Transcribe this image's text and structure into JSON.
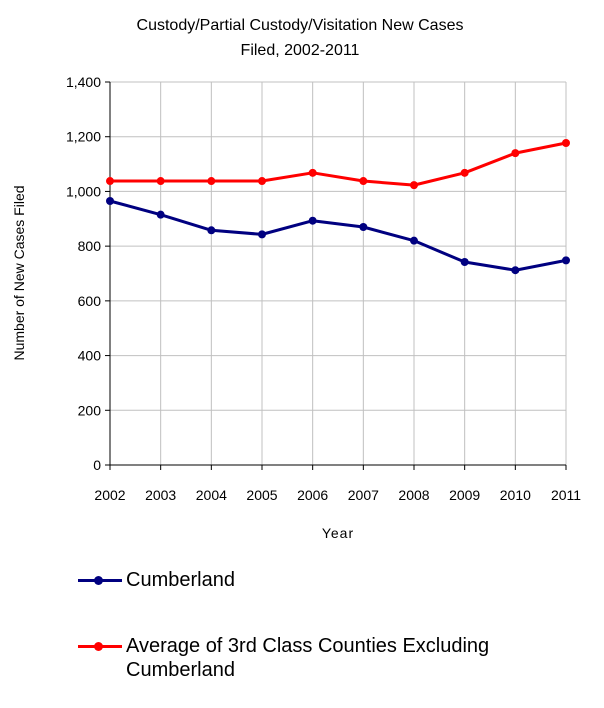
{
  "chart_data": {
    "type": "line",
    "title_lines": [
      "Custody/Partial Custody/Visitation New  Cases",
      "Filed, 2002-2011"
    ],
    "xlabel": "Year",
    "ylabel": "Number of New Cases Filed",
    "categories": [
      "2002",
      "2003",
      "2004",
      "2005",
      "2006",
      "2007",
      "2008",
      "2009",
      "2010",
      "2011"
    ],
    "ylim": [
      0,
      1400
    ],
    "yticks": [
      0,
      200,
      400,
      600,
      800,
      1000,
      1200,
      1400
    ],
    "ytick_labels": [
      "0",
      "200",
      "400",
      "600",
      "800",
      "1,000",
      "1,200",
      "1,400"
    ],
    "grid": true,
    "legend_position": "bottom",
    "series": [
      {
        "name": "Cumberland",
        "color": "#000080",
        "values": [
          965,
          915,
          858,
          843,
          893,
          870,
          820,
          742,
          712,
          748
        ]
      },
      {
        "name": "Average of 3rd Class Counties Excluding Cumberland",
        "color": "#ff0000",
        "values": [
          1038,
          1038,
          1038,
          1038,
          1068,
          1038,
          1023,
          1068,
          1140,
          1177
        ]
      }
    ]
  }
}
